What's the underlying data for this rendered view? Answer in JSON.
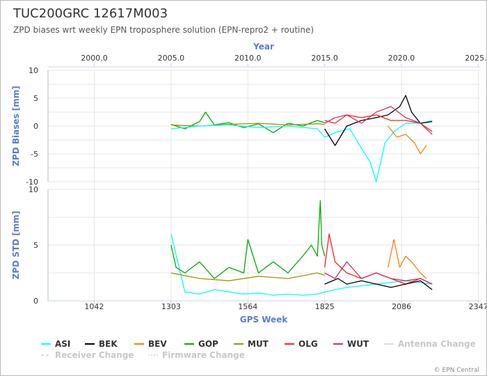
{
  "header": {
    "title": "TUC200GRC 12617M003",
    "subtitle": "ZPD biases wrt weekly EPN troposphere solution (EPN-repro2 + routine)"
  },
  "credit": "© EPN Central",
  "chart_data": {
    "type": "line",
    "grid": true,
    "legend_position": "bottom",
    "top_axis": {
      "title": "Year",
      "ticks": [
        "2000.0",
        "2005.0",
        "2010.0",
        "2015.0",
        "2020.0",
        "2025.0"
      ],
      "tick_values": [
        2000,
        2005,
        2010,
        2015,
        2020,
        2025
      ]
    },
    "bottom_axis": {
      "title": "GPS Week",
      "ticks": [
        "1042",
        "1303",
        "1564",
        "1825",
        "2086",
        "2347"
      ],
      "tick_values": [
        1042,
        1303,
        1564,
        1825,
        2086,
        2347
      ],
      "range": [
        885,
        2355
      ]
    },
    "panels": [
      {
        "ylabel": "ZPD Biases [mm]",
        "ylim": [
          -10,
          10
        ],
        "yticks": [
          "10",
          "5",
          "0",
          "-5",
          "-10"
        ],
        "ytick_values": [
          10,
          5,
          0,
          -5,
          -10
        ],
        "series": [
          {
            "name": "GOP",
            "x": [
              1303,
              1350,
              1400,
              1420,
              1450,
              1500,
              1550,
              1600,
              1650,
              1700,
              1750,
              1800,
              1825
            ],
            "y": [
              0.3,
              -0.5,
              0.8,
              2.5,
              0.2,
              0.6,
              -0.3,
              0.4,
              -1.2,
              0.5,
              0.0,
              1.0,
              0.6
            ]
          },
          {
            "name": "MUT",
            "x": [
              1303,
              1400,
              1500,
              1600,
              1700,
              1800,
              1825
            ],
            "y": [
              0.2,
              0.0,
              0.3,
              0.5,
              0.2,
              0.4,
              0.3
            ]
          },
          {
            "name": "ASI",
            "x": [
              1303,
              1400,
              1500,
              1600,
              1700,
              1800,
              1825,
              1870,
              1910,
              1950,
              1980,
              2000,
              2030,
              2060,
              2100,
              2150,
              2190
            ],
            "y": [
              -0.5,
              0.0,
              0.2,
              -0.3,
              0.0,
              -0.5,
              -2.0,
              -1.0,
              -0.5,
              -4.0,
              -6.5,
              -10.0,
              -3.0,
              -1.0,
              0.5,
              0.5,
              1.0
            ]
          },
          {
            "name": "BEK",
            "x": [
              1825,
              1860,
              1900,
              1950,
              2000,
              2040,
              2080,
              2100,
              2120,
              2150,
              2190
            ],
            "y": [
              -0.5,
              -3.5,
              0.0,
              1.0,
              1.5,
              2.0,
              3.5,
              5.5,
              2.5,
              0.5,
              0.8
            ]
          },
          {
            "name": "BEV",
            "x": [
              2040,
              2070,
              2100,
              2130,
              2150,
              2170
            ],
            "y": [
              0.0,
              -2.0,
              -1.5,
              -3.0,
              -5.0,
              -3.5
            ]
          },
          {
            "name": "OLG",
            "x": [
              1825,
              1860,
              1900,
              1950,
              2000,
              2050,
              2100,
              2150,
              2190
            ],
            "y": [
              1.0,
              0.5,
              2.0,
              1.5,
              2.0,
              1.0,
              1.0,
              0.5,
              -1.0
            ]
          },
          {
            "name": "WUT",
            "x": [
              1825,
              1860,
              1900,
              1950,
              2000,
              2050,
              2100,
              2150,
              2190
            ],
            "y": [
              0.5,
              1.5,
              2.0,
              0.5,
              2.5,
              3.5,
              1.5,
              0.5,
              -1.5
            ]
          }
        ]
      },
      {
        "ylabel": "ZPD STD [mm]",
        "ylim": [
          0,
          10
        ],
        "yticks": [
          "10",
          "5",
          "0"
        ],
        "ytick_values": [
          10,
          5,
          0
        ],
        "series": [
          {
            "name": "ASI",
            "x": [
              1303,
              1350,
              1400,
              1450,
              1500,
              1550,
              1600,
              1650,
              1700,
              1750,
              1800,
              1825,
              1900,
              2000,
              2100,
              2190
            ],
            "y": [
              6.0,
              0.8,
              0.6,
              1.0,
              0.8,
              0.6,
              0.7,
              0.5,
              0.6,
              0.5,
              0.6,
              0.8,
              1.2,
              1.5,
              1.8,
              1.5
            ]
          },
          {
            "name": "GOP",
            "x": [
              1303,
              1320,
              1350,
              1400,
              1450,
              1500,
              1550,
              1564,
              1600,
              1650,
              1700,
              1750,
              1780,
              1800,
              1810,
              1815,
              1825
            ],
            "y": [
              5.0,
              3.0,
              2.5,
              3.5,
              2.0,
              3.0,
              2.5,
              5.5,
              2.5,
              3.5,
              2.5,
              4.0,
              5.0,
              4.0,
              9.0,
              5.0,
              4.0
            ]
          },
          {
            "name": "MUT",
            "x": [
              1303,
              1400,
              1500,
              1600,
              1700,
              1800,
              1825
            ],
            "y": [
              2.5,
              2.0,
              1.8,
              2.2,
              2.0,
              2.5,
              2.3
            ]
          },
          {
            "name": "OLG",
            "x": [
              1825,
              1840,
              1860,
              1900,
              1950,
              2000,
              2050,
              2100,
              2150,
              2190
            ],
            "y": [
              3.0,
              6.0,
              3.5,
              2.5,
              2.0,
              2.5,
              2.0,
              1.5,
              2.0,
              1.5
            ]
          },
          {
            "name": "WUT",
            "x": [
              1825,
              1860,
              1900,
              1950,
              2000,
              2050,
              2100,
              2150,
              2190
            ],
            "y": [
              2.5,
              2.0,
              3.5,
              2.0,
              2.5,
              2.0,
              1.8,
              2.0,
              1.5
            ]
          },
          {
            "name": "BEV",
            "x": [
              2040,
              2060,
              2080,
              2100,
              2120,
              2150,
              2170
            ],
            "y": [
              3.0,
              5.5,
              3.0,
              4.0,
              3.5,
              2.5,
              2.0
            ]
          },
          {
            "name": "BEK",
            "x": [
              1825,
              1870,
              1900,
              1950,
              2000,
              2050,
              2100,
              2150,
              2190
            ],
            "y": [
              1.5,
              2.0,
              1.5,
              1.8,
              1.5,
              1.2,
              1.5,
              1.8,
              1.0
            ]
          }
        ]
      }
    ],
    "legend": [
      {
        "name": "ASI",
        "color": "#00ffff",
        "style": "solid",
        "faded": false
      },
      {
        "name": "BEK",
        "color": "#000000",
        "style": "solid",
        "faded": false
      },
      {
        "name": "BEV",
        "color": "#ff7f0e",
        "style": "solid",
        "faded": false
      },
      {
        "name": "GOP",
        "color": "#00aa00",
        "style": "solid",
        "faded": false
      },
      {
        "name": "MUT",
        "color": "#999900",
        "style": "solid",
        "faded": false
      },
      {
        "name": "OLG",
        "color": "#ff2020",
        "style": "solid",
        "faded": false
      },
      {
        "name": "WUT",
        "color": "#cc3366",
        "style": "solid",
        "faded": false
      },
      {
        "name": "Antenna Change",
        "color": "#dddddd",
        "style": "solid",
        "faded": true
      },
      {
        "name": "Receiver Change",
        "color": "#dddddd",
        "style": "dashed",
        "faded": true
      },
      {
        "name": "Firmware Change",
        "color": "#dddddd",
        "style": "dotted",
        "faded": true
      }
    ]
  }
}
